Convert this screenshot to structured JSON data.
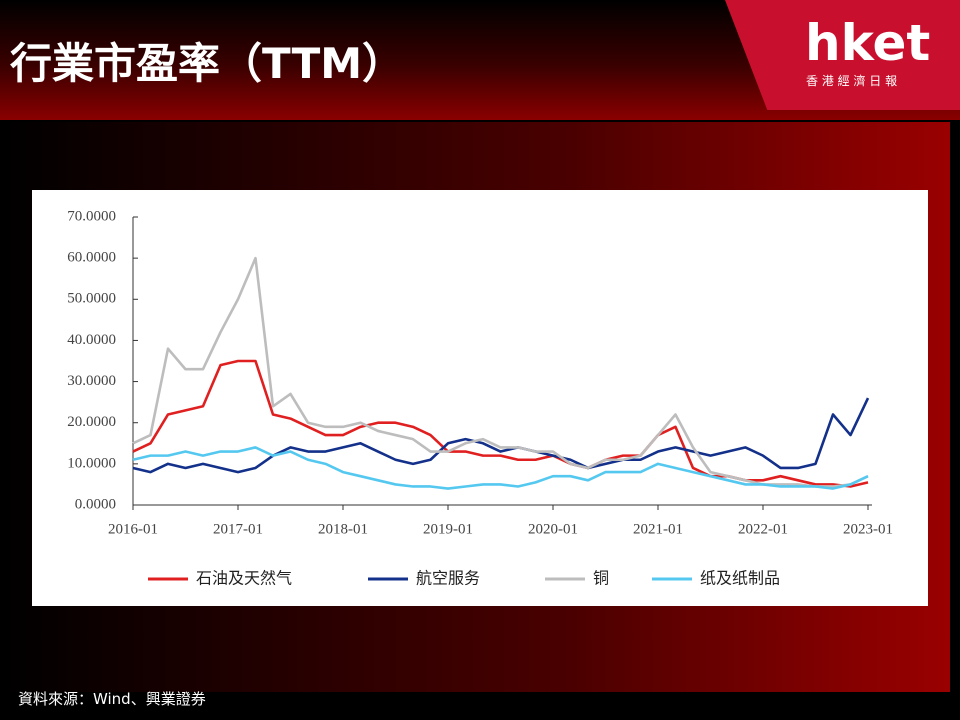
{
  "header": {
    "title": "行業市盈率（TTM）"
  },
  "logo": {
    "brand": "hket",
    "subtitle": "香 港 經 濟 日 報"
  },
  "source": "資料來源：Wind、興業證券",
  "chart_data": {
    "type": "line",
    "x": [
      "2016-01",
      "2016-03",
      "2016-05",
      "2016-07",
      "2016-09",
      "2016-11",
      "2017-01",
      "2017-03",
      "2017-05",
      "2017-07",
      "2017-09",
      "2017-11",
      "2018-01",
      "2018-03",
      "2018-05",
      "2018-07",
      "2018-09",
      "2018-11",
      "2019-01",
      "2019-03",
      "2019-05",
      "2019-07",
      "2019-09",
      "2019-11",
      "2020-01",
      "2020-03",
      "2020-05",
      "2020-07",
      "2020-09",
      "2020-11",
      "2021-01",
      "2021-03",
      "2021-05",
      "2021-07",
      "2021-09",
      "2021-11",
      "2022-01",
      "2022-03",
      "2022-05",
      "2022-07",
      "2022-09",
      "2022-11",
      "2023-01"
    ],
    "series": [
      {
        "name": "石油及天然气",
        "color": "#e02020",
        "values": [
          13,
          15,
          22,
          23,
          24,
          34,
          35,
          35,
          22,
          21,
          19,
          17,
          17,
          19,
          20,
          20,
          19,
          17,
          13,
          13,
          12,
          12,
          11,
          11,
          12,
          10,
          9,
          11,
          12,
          12,
          17,
          19,
          9,
          7,
          7,
          6,
          6,
          7,
          6,
          5,
          5,
          4.5,
          5.5
        ]
      },
      {
        "name": "航空服务",
        "color": "#13308a",
        "values": [
          9,
          8,
          10,
          9,
          10,
          9,
          8,
          9,
          12,
          14,
          13,
          13,
          14,
          15,
          13,
          11,
          10,
          11,
          15,
          16,
          15,
          13,
          14,
          13,
          12,
          11,
          9,
          10,
          11,
          11,
          13,
          14,
          13,
          12,
          13,
          14,
          12,
          9,
          9,
          10,
          22,
          17,
          26
        ]
      },
      {
        "name": "铜",
        "color": "#bdbdbd",
        "values": [
          15,
          17,
          38,
          33,
          33,
          42,
          50,
          60,
          24,
          27,
          20,
          19,
          19,
          20,
          18,
          17,
          16,
          13,
          13,
          15,
          16,
          14,
          14,
          13,
          13,
          10,
          9,
          11,
          11,
          12,
          17,
          22,
          14,
          8,
          7,
          6,
          5,
          5,
          5,
          4.5,
          4.5,
          5,
          7
        ]
      },
      {
        "name": "纸及纸制品",
        "color": "#55c8f0",
        "values": [
          11,
          12,
          12,
          13,
          12,
          13,
          13,
          14,
          12,
          13,
          11,
          10,
          8,
          7,
          6,
          5,
          4.5,
          4.5,
          4,
          4.5,
          5,
          5,
          4.5,
          5.5,
          7,
          7,
          6,
          8,
          8,
          8,
          10,
          9,
          8,
          7,
          6,
          5,
          5,
          4.5,
          4.5,
          4.5,
          4,
          5,
          7
        ]
      }
    ],
    "xlim": [
      "2016-01",
      "2023-01"
    ],
    "xticks": [
      "2016-01",
      "2017-01",
      "2018-01",
      "2019-01",
      "2020-01",
      "2021-01",
      "2022-01",
      "2023-01"
    ],
    "ylim": [
      0,
      70
    ],
    "yticks": [
      {
        "value": 0,
        "label": "0.0000"
      },
      {
        "value": 10,
        "label": "10.0000"
      },
      {
        "value": 20,
        "label": "20.0000"
      },
      {
        "value": 30,
        "label": "30.0000"
      },
      {
        "value": 40,
        "label": "40.0000"
      },
      {
        "value": 50,
        "label": "50.0000"
      },
      {
        "value": 60,
        "label": "60.0000"
      },
      {
        "value": 70,
        "label": "70.0000"
      }
    ],
    "grid": false,
    "legend": "bottom"
  }
}
